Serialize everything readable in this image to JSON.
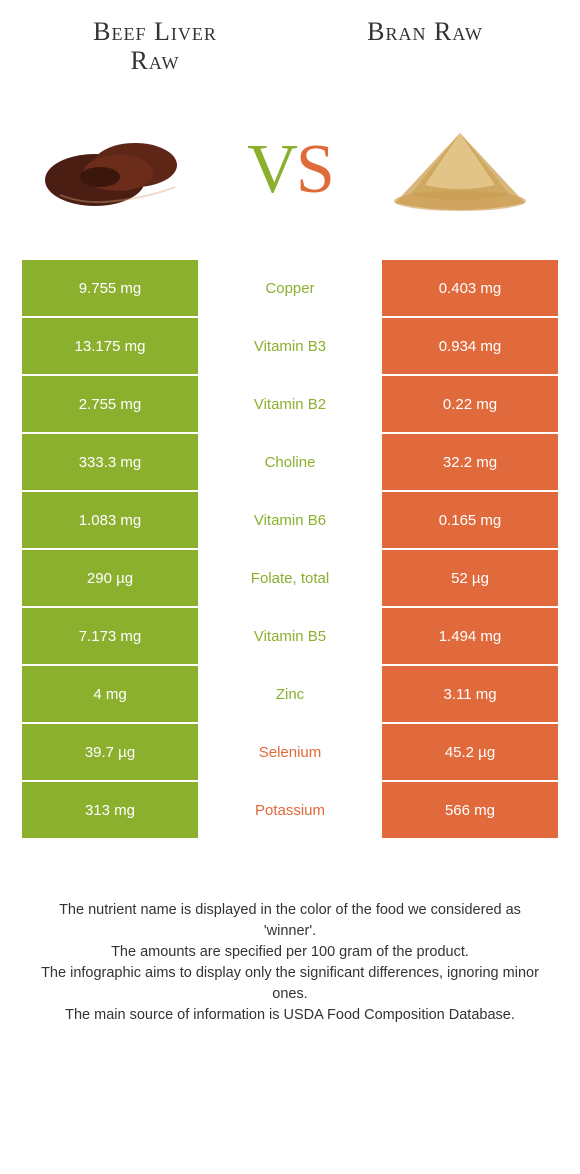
{
  "colors": {
    "left": "#8ab02e",
    "right": "#e06a3b",
    "white": "#ffffff"
  },
  "titles": {
    "left_line1": "Beef Liver",
    "left_line2": "Raw",
    "right": "Bran Raw"
  },
  "vs": {
    "v": "V",
    "s": "S"
  },
  "rows": [
    {
      "left": "9.755 mg",
      "mid": "Copper",
      "right": "0.403 mg",
      "winner": "left"
    },
    {
      "left": "13.175 mg",
      "mid": "Vitamin B3",
      "right": "0.934 mg",
      "winner": "left"
    },
    {
      "left": "2.755 mg",
      "mid": "Vitamin B2",
      "right": "0.22 mg",
      "winner": "left"
    },
    {
      "left": "333.3 mg",
      "mid": "Choline",
      "right": "32.2 mg",
      "winner": "left"
    },
    {
      "left": "1.083 mg",
      "mid": "Vitamin B6",
      "right": "0.165 mg",
      "winner": "left"
    },
    {
      "left": "290 µg",
      "mid": "Folate, total",
      "right": "52 µg",
      "winner": "left"
    },
    {
      "left": "7.173 mg",
      "mid": "Vitamin B5",
      "right": "1.494 mg",
      "winner": "left"
    },
    {
      "left": "4 mg",
      "mid": "Zinc",
      "right": "3.11 mg",
      "winner": "left"
    },
    {
      "left": "39.7 µg",
      "mid": "Selenium",
      "right": "45.2 µg",
      "winner": "right"
    },
    {
      "left": "313 mg",
      "mid": "Potassium",
      "right": "566 mg",
      "winner": "right"
    }
  ],
  "footer": {
    "l1": "The nutrient name is displayed in the color of the food we considered as 'winner'.",
    "l2": "The amounts are specified per 100 gram of the product.",
    "l3": "The infographic aims to display only the significant differences, ignoring minor ones.",
    "l4": "The main source of information is USDA Food Composition Database."
  }
}
